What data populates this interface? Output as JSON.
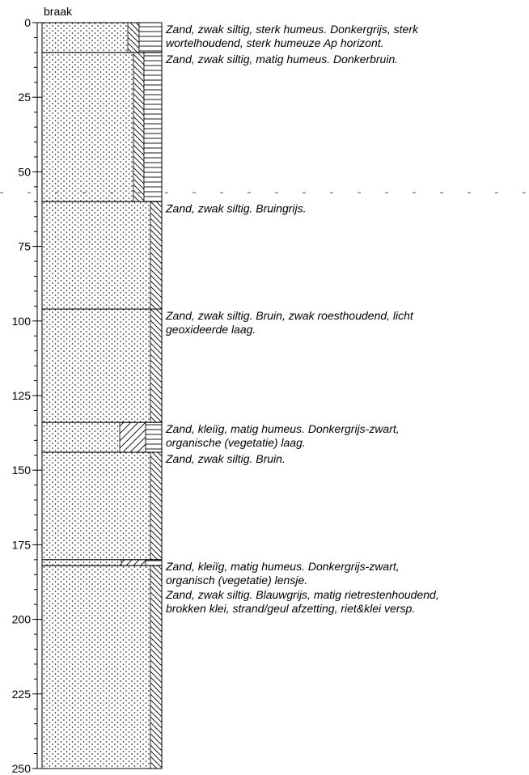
{
  "title": "braak",
  "yticks": [
    0,
    25,
    50,
    75,
    100,
    125,
    150,
    175,
    200,
    225,
    250
  ],
  "ylim": [
    0,
    250
  ],
  "groundwater": 57,
  "layers": [
    {
      "top": 0,
      "bottom": 10,
      "lines": [
        "Zand, zwak siltig, sterk humeus. Donkergrijs, sterk",
        "wortelhoudend, sterk humeuze Ap horizont."
      ]
    },
    {
      "top": 10,
      "bottom": 60,
      "lines": [
        "Zand, zwak siltig, matig humeus. Donkerbruin."
      ]
    },
    {
      "top": 60,
      "bottom": 96,
      "lines": [
        "Zand, zwak siltig. Bruingrijs."
      ]
    },
    {
      "top": 96,
      "bottom": 134,
      "lines": [
        "Zand, zwak siltig. Bruin, zwak roesthoudend, licht",
        "geoxideerde laag."
      ]
    },
    {
      "top": 134,
      "bottom": 144,
      "lines": [
        "Zand,  kleiïg, matig humeus. Donkergrijs-zwart,",
        "organische (vegetatie) laag."
      ]
    },
    {
      "top": 144,
      "bottom": 180,
      "lines": [
        "Zand, zwak siltig. Bruin."
      ]
    },
    {
      "top": 180,
      "bottom": 182,
      "lines": [
        "Zand,  kleiïg, matig humeus. Donkergrijs-zwart,",
        "organisch (vegetatie) lensje."
      ]
    },
    {
      "top": 182,
      "bottom": 250,
      "lines": [
        "Zand, zwak siltig. Blauwgrijs, matig rietrestenhoudend,",
        "brokken klei, strand/geul afzetting, riet&klei versp."
      ]
    }
  ]
}
